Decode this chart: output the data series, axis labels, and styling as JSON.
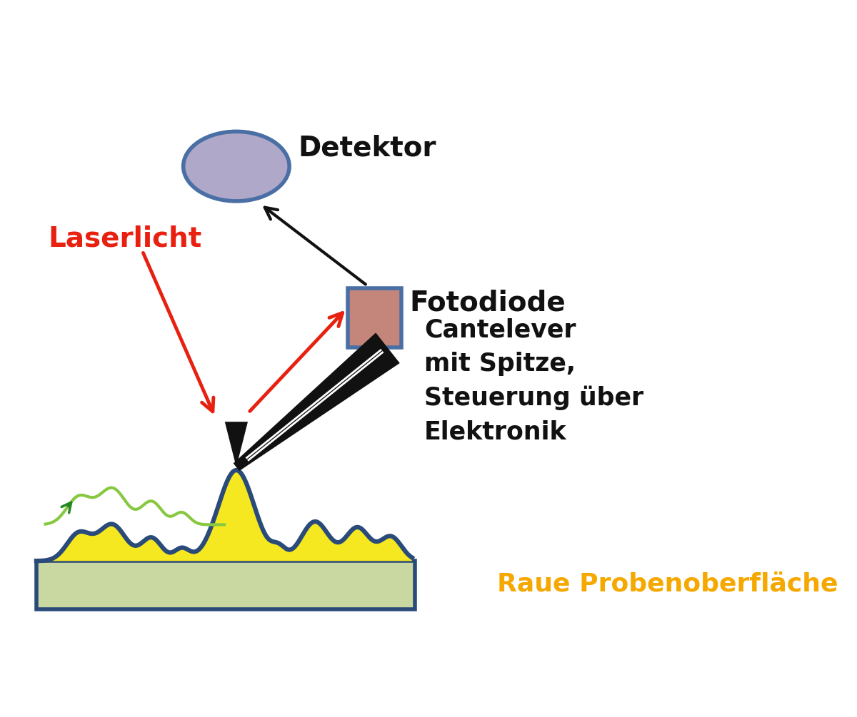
{
  "bg_color": "#ffffff",
  "detector_label": "Detektor",
  "fotodiode_label": "Fotodiode",
  "laserlicht_label": "Laserlicht",
  "cantelever_label": "Cantelever\nmit Spitze,\nSteuerung über\nElektronik",
  "surface_label": "Raue Probenoberfläche",
  "detector_color": "#b0a8c8",
  "detector_edge": "#4a6fa5",
  "fotodiode_fill": "#c4857a",
  "fotodiode_edge": "#4a6fa5",
  "substrate_fill": "#c8d8a0",
  "substrate_edge": "#2a4a7a",
  "surface_fill": "#f5e820",
  "surface_edge": "#2a4a7a",
  "cantilever_color": "#111111",
  "laser_color": "#e82010",
  "arrow_black": "#111111",
  "scan_line_color": "#88c840",
  "scan_arrow_color": "#228822",
  "label_color_black": "#111111",
  "label_color_orange": "#f5a800",
  "label_color_red": "#e82010"
}
